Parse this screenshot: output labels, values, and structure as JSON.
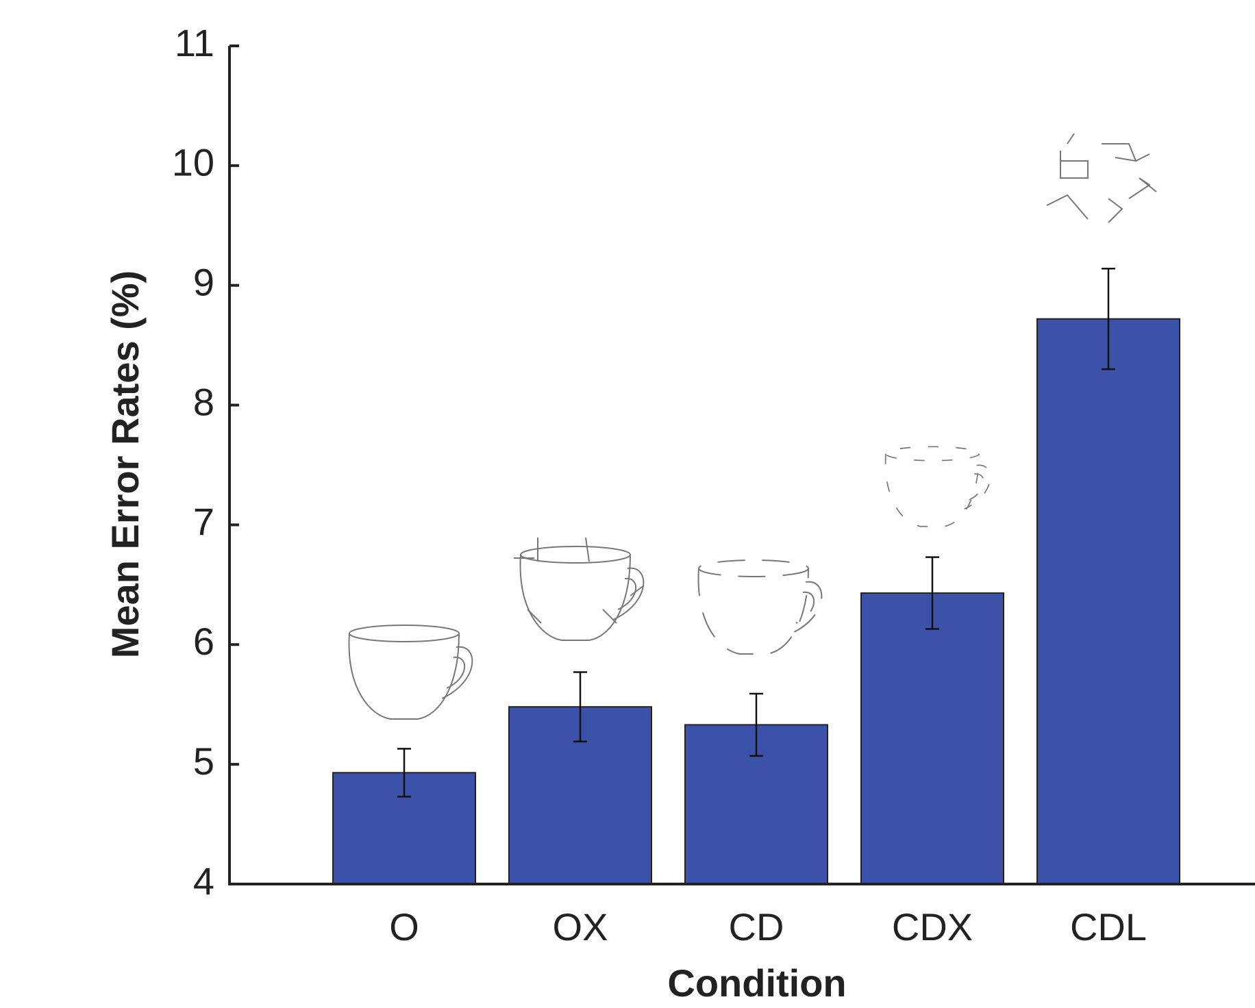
{
  "chart_data": {
    "type": "bar",
    "categories": [
      "O",
      "OX",
      "CD",
      "CDX",
      "CDL"
    ],
    "values": [
      4.93,
      5.48,
      5.33,
      6.43,
      8.72
    ],
    "errors": [
      0.2,
      0.29,
      0.26,
      0.3,
      0.42
    ],
    "color": "#3b52a8",
    "ylim": [
      4,
      11
    ],
    "yticks": [
      4,
      5,
      6,
      7,
      8,
      9,
      10,
      11
    ],
    "xlabel": "Condition",
    "ylabel": "Mean Error Rates (%)"
  }
}
